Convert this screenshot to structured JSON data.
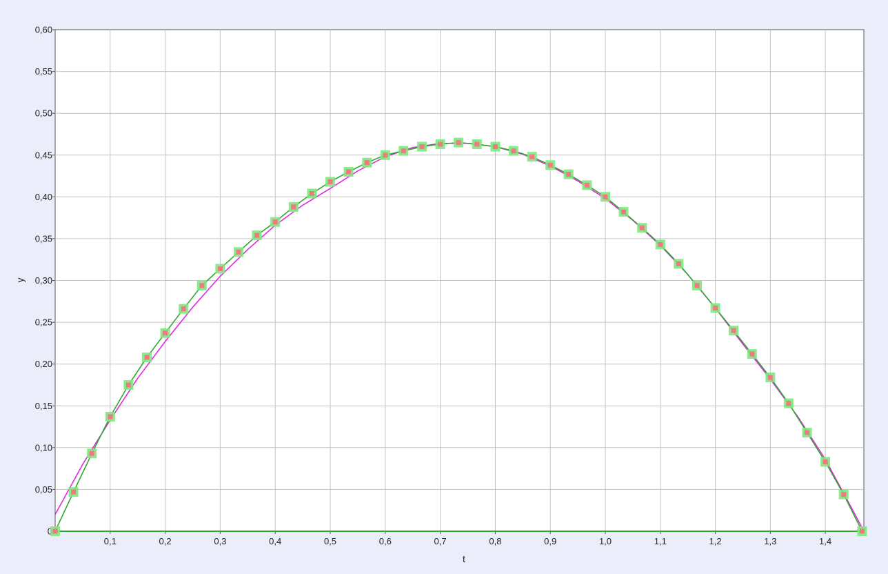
{
  "chart_data": {
    "type": "scatter",
    "title": "",
    "xlabel": "t",
    "ylabel": "y",
    "xlim": [
      0,
      1.47
    ],
    "ylim": [
      0,
      0.6
    ],
    "grid": true,
    "x_ticks": [
      0.1,
      0.2,
      0.3,
      0.4,
      0.5,
      0.6,
      0.7,
      0.8,
      0.9,
      1.0,
      1.1,
      1.2,
      1.3,
      1.4
    ],
    "x_tick_labels": [
      "0,1",
      "0,2",
      "0,3",
      "0,4",
      "0,5",
      "0,6",
      "0,7",
      "0,8",
      "0,9",
      "1,0",
      "1,1",
      "1,2",
      "1,3",
      "1,4"
    ],
    "y_ticks": [
      0,
      0.05,
      0.1,
      0.15,
      0.2,
      0.25,
      0.3,
      0.35,
      0.4,
      0.45,
      0.5,
      0.55,
      0.6
    ],
    "y_tick_labels": [
      "0",
      "0,05",
      "0,10",
      "0,15",
      "0,20",
      "0,25",
      "0,30",
      "0,35",
      "0,40",
      "0,45",
      "0,50",
      "0,55",
      "0,60"
    ],
    "series": [
      {
        "type": "scatter",
        "color": "#7ee87e",
        "marker_fill": "#f07a84",
        "x": [
          0,
          0.0333,
          0.0667,
          0.1,
          0.1333,
          0.1667,
          0.2,
          0.2333,
          0.2667,
          0.3,
          0.3333,
          0.3667,
          0.4,
          0.4333,
          0.4667,
          0.5,
          0.5333,
          0.5667,
          0.6,
          0.6333,
          0.6667,
          0.7,
          0.7333,
          0.7667,
          0.8,
          0.8333,
          0.8667,
          0.9,
          0.9333,
          0.9667,
          1.0,
          1.0333,
          1.0667,
          1.1,
          1.1333,
          1.1667,
          1.2,
          1.2333,
          1.2667,
          1.3,
          1.3333,
          1.3667,
          1.4,
          1.4333,
          1.4667
        ],
        "y": [
          0,
          0.047,
          0.093,
          0.137,
          0.175,
          0.208,
          0.237,
          0.266,
          0.294,
          0.314,
          0.334,
          0.354,
          0.37,
          0.388,
          0.404,
          0.418,
          0.43,
          0.441,
          0.45,
          0.455,
          0.46,
          0.463,
          0.465,
          0.463,
          0.46,
          0.455,
          0.448,
          0.438,
          0.427,
          0.414,
          0.4,
          0.382,
          0.363,
          0.343,
          0.32,
          0.294,
          0.267,
          0.24,
          0.212,
          0.184,
          0.153,
          0.118,
          0.083,
          0.044,
          0
        ]
      },
      {
        "type": "line",
        "color": "#2ea82e",
        "x": [
          0,
          0.0333,
          0.0667,
          0.1,
          0.1333,
          0.1667,
          0.2,
          0.2333,
          0.2667,
          0.3,
          0.3333,
          0.3667,
          0.4,
          0.4333,
          0.4667,
          0.5,
          0.5333,
          0.5667,
          0.6,
          0.6333,
          0.6667,
          0.7,
          0.7333,
          0.7667,
          0.8,
          0.8333,
          0.8667,
          0.9,
          0.9333,
          0.9667,
          1.0,
          1.0333,
          1.0667,
          1.1,
          1.1333,
          1.1667,
          1.2,
          1.2333,
          1.2667,
          1.3,
          1.3333,
          1.3667,
          1.4,
          1.4333,
          1.4667
        ],
        "y": [
          0,
          0.047,
          0.093,
          0.137,
          0.175,
          0.208,
          0.237,
          0.266,
          0.294,
          0.314,
          0.334,
          0.354,
          0.37,
          0.388,
          0.404,
          0.418,
          0.43,
          0.441,
          0.45,
          0.455,
          0.46,
          0.463,
          0.465,
          0.463,
          0.46,
          0.455,
          0.448,
          0.438,
          0.427,
          0.414,
          0.4,
          0.382,
          0.363,
          0.343,
          0.32,
          0.294,
          0.267,
          0.24,
          0.212,
          0.184,
          0.153,
          0.118,
          0.083,
          0.044,
          0
        ]
      },
      {
        "type": "line",
        "color": "#e028e0",
        "x": [
          0,
          0.05,
          0.1,
          0.15,
          0.2,
          0.25,
          0.3,
          0.35,
          0.4,
          0.45,
          0.5,
          0.55,
          0.6,
          0.65,
          0.7,
          0.75,
          0.8,
          0.85,
          0.9,
          0.95,
          1.0,
          1.05,
          1.1,
          1.15,
          1.2,
          1.25,
          1.3,
          1.35,
          1.4,
          1.45,
          1.47
        ],
        "y": [
          0.02,
          0.08,
          0.133,
          0.183,
          0.227,
          0.268,
          0.305,
          0.337,
          0.366,
          0.39,
          0.41,
          0.431,
          0.448,
          0.459,
          0.464,
          0.464,
          0.46,
          0.451,
          0.437,
          0.419,
          0.398,
          0.372,
          0.342,
          0.307,
          0.267,
          0.224,
          0.182,
          0.137,
          0.086,
          0.025,
          0
        ]
      },
      {
        "type": "line",
        "color": "#2ea82e",
        "x": [
          0,
          1.47
        ],
        "y": [
          0,
          0
        ]
      }
    ]
  }
}
